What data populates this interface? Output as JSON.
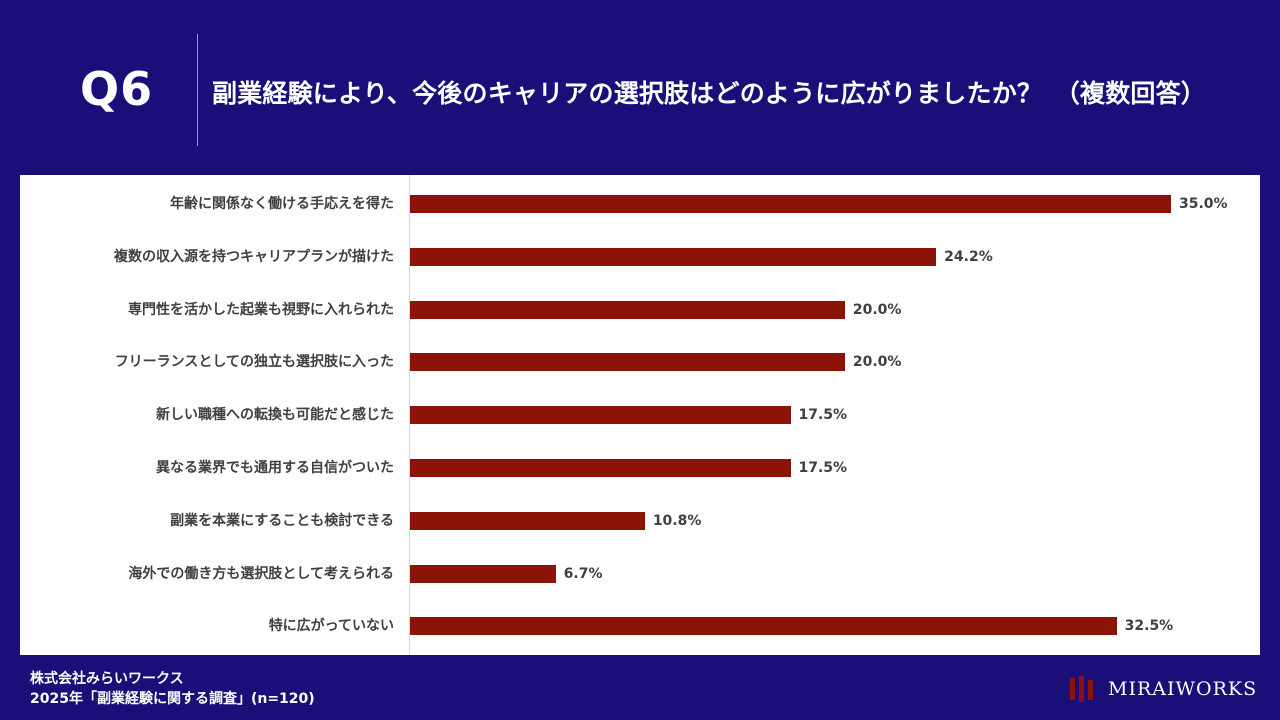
{
  "header": {
    "q_number": "Q6",
    "question": "副業経験により、今後のキャリアの選択肢はどのように広がりましたか？　（複数回答）"
  },
  "chart_data": {
    "type": "bar",
    "orientation": "horizontal",
    "categories": [
      "年齢に関係なく働ける手応えを得た",
      "複数の収入源を持つキャリアプランが描けた",
      "専門性を活かした起業も視野に入れられた",
      "フリーランスとしての独立も選択肢に入った",
      "新しい職種への転換も可能だと感じた",
      "異なる業界でも通用する自信がついた",
      "副業を本業にすることも検討できる",
      "海外での働き方も選択肢として考えられる",
      "特に広がっていない"
    ],
    "values": [
      35.0,
      24.2,
      20.0,
      20.0,
      17.5,
      17.5,
      10.8,
      6.7,
      32.5
    ],
    "value_labels": [
      "35.0%",
      "24.2%",
      "20.0%",
      "20.0%",
      "17.5%",
      "17.5%",
      "10.8%",
      "6.7%",
      "32.5%"
    ],
    "xlim": [
      0,
      35
    ],
    "bar_color": "#8b1308",
    "grid": false
  },
  "footer": {
    "company": "株式会社みらいワークス",
    "survey": "2025年「副業経験に関する調査」(n=120)"
  },
  "logo": {
    "text": "MIRAIWORKS"
  },
  "colors": {
    "background": "#1a0f78",
    "panel": "#ffffff",
    "bar": "#8b1308"
  }
}
